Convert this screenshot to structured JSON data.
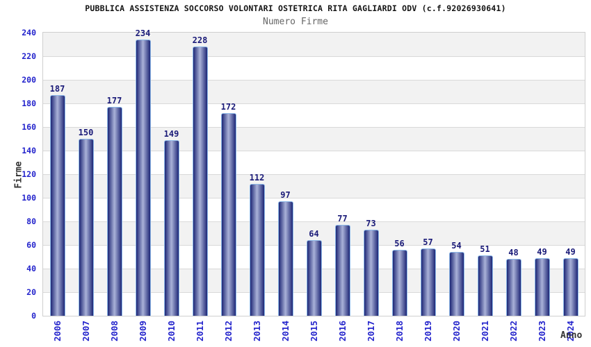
{
  "chart_data": {
    "type": "bar",
    "title": "PUBBLICA ASSISTENZA SOCCORSO VOLONTARI OSTETRICA RITA GAGLIARDI ODV (c.f.92026930641)",
    "subtitle": "Numero Firme",
    "xlabel": "Anno",
    "ylabel": "Firme",
    "categories": [
      "2006",
      "2007",
      "2008",
      "2009",
      "2010",
      "2011",
      "2012",
      "2013",
      "2014",
      "2015",
      "2016",
      "2017",
      "2018",
      "2019",
      "2020",
      "2021",
      "2022",
      "2023",
      "2024"
    ],
    "values": [
      187,
      150,
      177,
      234,
      149,
      228,
      172,
      112,
      97,
      64,
      77,
      73,
      56,
      57,
      54,
      51,
      48,
      49,
      49
    ],
    "ylim": [
      0,
      240
    ],
    "ytick_step": 20,
    "yticks": [
      0,
      20,
      40,
      60,
      80,
      100,
      120,
      140,
      160,
      180,
      200,
      220,
      240
    ],
    "grid": true,
    "legend": "none",
    "x_labels_rotated_degrees": 90,
    "colors": {
      "title": "#141414",
      "subtitle": "#666666",
      "axis_title": "#333333",
      "tick_label": "#2424cc",
      "value_label": "#1a1a78",
      "bar_dark": "#1e2776",
      "bar_light": "#aab2d8",
      "bar_outline": "#8cb8e8",
      "gridline": "#d9d9d9",
      "band_shaded": "#f2f2f2",
      "band_plain": "#ffffff",
      "plot_border": "#cfcfcf"
    }
  }
}
